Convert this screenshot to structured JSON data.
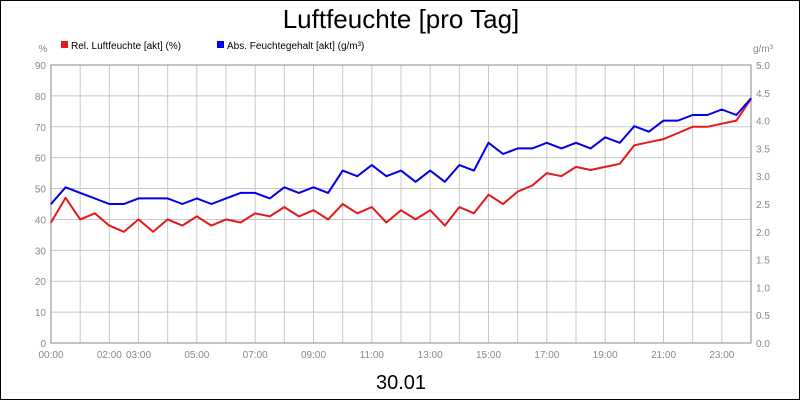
{
  "chart_data": {
    "type": "line",
    "title": "Luftfeuchte [pro Tag]",
    "date_label": "30.01",
    "left_axis": {
      "unit": "%",
      "ylim": [
        0,
        90
      ],
      "ticks": [
        "0",
        "10",
        "20",
        "30",
        "40",
        "50",
        "60",
        "70",
        "80",
        "90"
      ]
    },
    "right_axis": {
      "unit": "g/m³",
      "ylim": [
        0.0,
        5.0
      ],
      "ticks": [
        "0.0",
        "0.5",
        "1.0",
        "1.5",
        "2.0",
        "2.5",
        "3.0",
        "3.5",
        "4.0",
        "4.5",
        "5.0"
      ]
    },
    "x_axis": {
      "xlim": [
        0,
        24
      ],
      "tick_labels": [
        {
          "label": "00:00",
          "x": 0
        },
        {
          "label": "02:00",
          "x": 2
        },
        {
          "label": "03:00",
          "x": 3
        },
        {
          "label": "05:00",
          "x": 5
        },
        {
          "label": "07:00",
          "x": 7
        },
        {
          "label": "09:00",
          "x": 9
        },
        {
          "label": "11:00",
          "x": 11
        },
        {
          "label": "13:00",
          "x": 13
        },
        {
          "label": "15:00",
          "x": 15
        },
        {
          "label": "17:00",
          "x": 17
        },
        {
          "label": "19:00",
          "x": 19
        },
        {
          "label": "21:00",
          "x": 21
        },
        {
          "label": "23:00",
          "x": 23
        }
      ]
    },
    "grid": true,
    "legend_position": "top-left",
    "series": [
      {
        "name": "Rel. Luftfeuchte [akt] (%)",
        "color": "#e41a1a",
        "axis": "left",
        "x": [
          0,
          0.5,
          1,
          1.5,
          2,
          2.5,
          3,
          3.5,
          4,
          4.5,
          5,
          5.5,
          6,
          6.5,
          7,
          7.5,
          8,
          8.5,
          9,
          9.5,
          10,
          10.5,
          11,
          11.5,
          12,
          12.5,
          13,
          13.5,
          14,
          14.5,
          15,
          15.5,
          16,
          16.5,
          17,
          17.5,
          18,
          18.5,
          19,
          19.5,
          20,
          20.5,
          21,
          21.5,
          22,
          22.5,
          23,
          23.5,
          24
        ],
        "values": [
          39,
          47,
          40,
          42,
          38,
          36,
          40,
          36,
          40,
          38,
          41,
          38,
          40,
          39,
          42,
          41,
          44,
          41,
          43,
          40,
          45,
          42,
          44,
          39,
          43,
          40,
          43,
          38,
          44,
          42,
          48,
          45,
          49,
          51,
          55,
          54,
          57,
          56,
          57,
          58,
          64,
          65,
          66,
          68,
          70,
          70,
          71,
          72,
          79
        ]
      },
      {
        "name": "Abs. Feuchtegehalt [akt] (g/m³)",
        "color": "#0000ee",
        "axis": "right",
        "x": [
          0,
          0.5,
          1,
          1.5,
          2,
          2.5,
          3,
          3.5,
          4,
          4.5,
          5,
          5.5,
          6,
          6.5,
          7,
          7.5,
          8,
          8.5,
          9,
          9.5,
          10,
          10.5,
          11,
          11.5,
          12,
          12.5,
          13,
          13.5,
          14,
          14.5,
          15,
          15.5,
          16,
          16.5,
          17,
          17.5,
          18,
          18.5,
          19,
          19.5,
          20,
          20.5,
          21,
          21.5,
          22,
          22.5,
          23,
          23.5,
          24
        ],
        "values": [
          2.5,
          2.8,
          2.7,
          2.6,
          2.5,
          2.5,
          2.6,
          2.6,
          2.6,
          2.5,
          2.6,
          2.5,
          2.6,
          2.7,
          2.7,
          2.6,
          2.8,
          2.7,
          2.8,
          2.7,
          3.1,
          3.0,
          3.2,
          3.0,
          3.1,
          2.9,
          3.1,
          2.9,
          3.2,
          3.1,
          3.6,
          3.4,
          3.5,
          3.5,
          3.6,
          3.5,
          3.6,
          3.5,
          3.7,
          3.6,
          3.9,
          3.8,
          4.0,
          4.0,
          4.1,
          4.1,
          4.2,
          4.1,
          4.4
        ]
      }
    ]
  }
}
